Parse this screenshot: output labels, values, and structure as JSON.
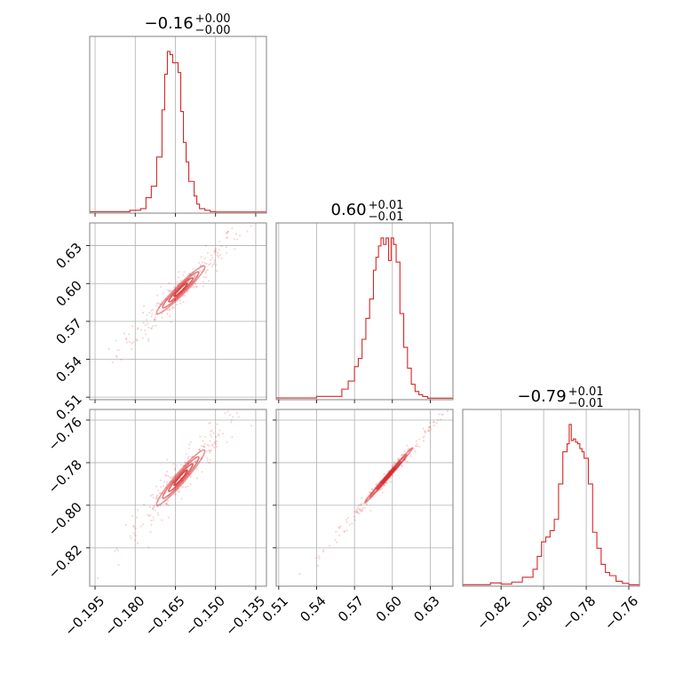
{
  "chart_data": {
    "type": "corner",
    "color": "#d62728",
    "grid": true,
    "parameters": [
      {
        "title_value": "−0.16",
        "err_plus": "+0.00",
        "err_minus": "−0.00",
        "range": [
          -0.197,
          -0.131
        ],
        "ticks": [
          -0.195,
          -0.18,
          -0.165,
          -0.15,
          -0.135
        ],
        "tick_labels": [
          "−0.195",
          "−0.180",
          "−0.165",
          "−0.150",
          "−0.135"
        ],
        "hist_edges": [
          -0.197,
          -0.182,
          -0.178,
          -0.176,
          -0.174,
          -0.172,
          -0.17,
          -0.169,
          -0.168,
          -0.167,
          -0.166,
          -0.165,
          -0.164,
          -0.163,
          -0.162,
          -0.161,
          -0.16,
          -0.158,
          -0.157,
          -0.156,
          -0.154,
          -0.152,
          -0.15,
          -0.131
        ],
        "hist_counts": [
          0.3,
          1.2,
          2.2,
          9,
          16,
          34,
          63,
          85,
          99,
          97,
          92,
          92,
          86,
          62,
          43,
          31,
          19,
          10,
          5,
          2.2,
          1.2,
          0.4,
          0.2
        ]
      },
      {
        "title_value": "0.60",
        "err_plus": "+0.01",
        "err_minus": "−0.01",
        "range": [
          0.508,
          0.648
        ],
        "ticks": [
          0.51,
          0.54,
          0.57,
          0.6,
          0.63
        ],
        "tick_labels": [
          "0.51",
          "0.54",
          "0.57",
          "0.60",
          "0.63"
        ],
        "hist_edges": [
          0.508,
          0.54,
          0.56,
          0.565,
          0.57,
          0.573,
          0.576,
          0.579,
          0.582,
          0.585,
          0.587,
          0.589,
          0.591,
          0.593,
          0.595,
          0.597,
          0.599,
          0.601,
          0.603,
          0.606,
          0.609,
          0.612,
          0.615,
          0.618,
          0.621,
          0.624,
          0.628,
          0.648
        ],
        "hist_counts": [
          0.5,
          1.5,
          6,
          11,
          20,
          25,
          37,
          50,
          62,
          80,
          88,
          95,
          100,
          96,
          100,
          86,
          100,
          96,
          85,
          53,
          32,
          19,
          9,
          4.5,
          2.5,
          1.4,
          0.4
        ]
      },
      {
        "title_value": "−0.79",
        "err_plus": "+0.01",
        "err_minus": "−0.01",
        "range": [
          -0.838,
          -0.755
        ],
        "ticks": [
          -0.82,
          -0.8,
          -0.78,
          -0.76
        ],
        "tick_labels": [
          "−0.82",
          "−0.80",
          "−0.78",
          "−0.76"
        ],
        "hist_edges": [
          -0.838,
          -0.825,
          -0.82,
          -0.815,
          -0.81,
          -0.805,
          -0.803,
          -0.801,
          -0.799,
          -0.797,
          -0.795,
          -0.793,
          -0.791,
          -0.789,
          -0.788,
          -0.787,
          -0.786,
          -0.785,
          -0.784,
          -0.783,
          -0.782,
          -0.781,
          -0.779,
          -0.777,
          -0.775,
          -0.773,
          -0.771,
          -0.769,
          -0.766,
          -0.763,
          -0.76,
          -0.755
        ],
        "hist_counts": [
          0.4,
          1.5,
          0.7,
          2,
          5,
          10,
          18,
          27,
          30,
          34,
          41,
          63,
          83,
          88,
          100,
          90,
          91,
          89,
          88,
          85,
          83,
          79,
          63,
          33,
          23,
          13,
          8,
          6,
          2.5,
          1.2,
          0.3
        ]
      }
    ],
    "pairs": [
      {
        "x": 0,
        "y": 1,
        "center": [
          -0.163,
          0.595
        ],
        "std": [
          0.0045,
          0.0095
        ],
        "corr": 0.96
      },
      {
        "x": 0,
        "y": 2,
        "center": [
          -0.163,
          -0.787
        ],
        "std": [
          0.0045,
          0.0065
        ],
        "corr": 0.96
      },
      {
        "x": 1,
        "y": 2,
        "center": [
          0.597,
          -0.786
        ],
        "std": [
          0.0095,
          0.0065
        ],
        "corr": 0.995
      }
    ]
  }
}
